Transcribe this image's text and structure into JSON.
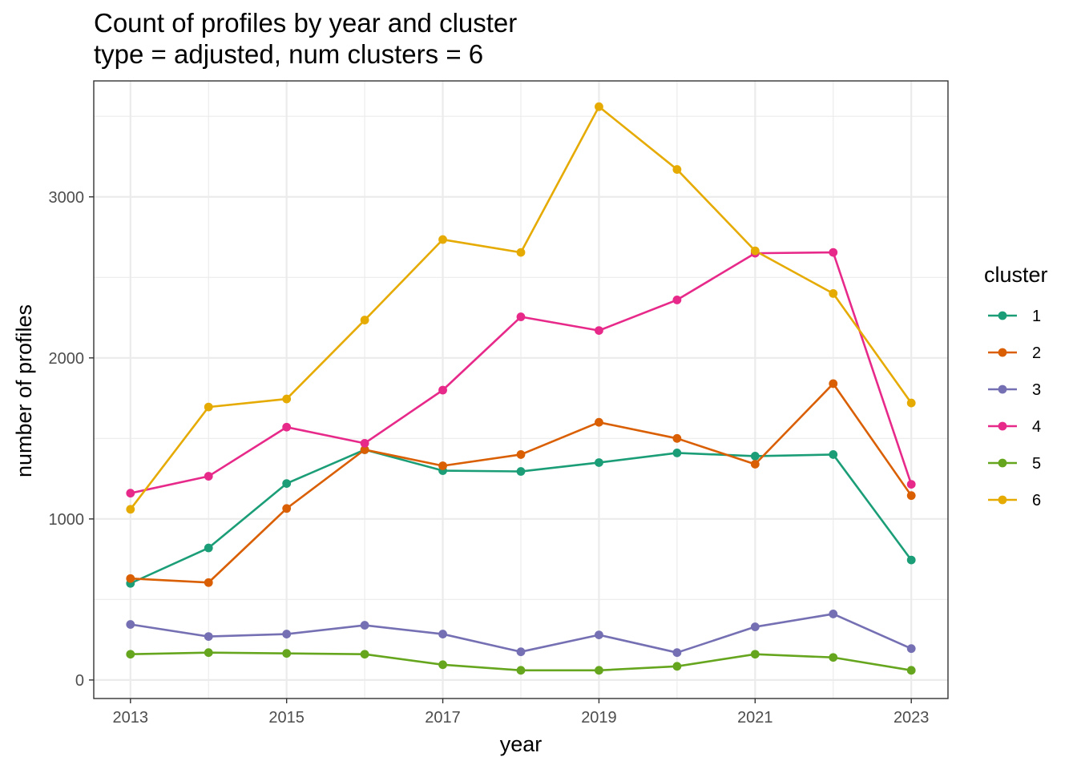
{
  "chart_data": {
    "type": "line",
    "title": "Count of profiles by year and cluster",
    "subtitle": "type = adjusted, num clusters = 6",
    "xlabel": "year",
    "ylabel": "number of profiles",
    "x": [
      2013,
      2014,
      2015,
      2016,
      2017,
      2018,
      2019,
      2020,
      2021,
      2022,
      2023
    ],
    "x_ticks": [
      2013,
      2015,
      2017,
      2019,
      2021,
      2023
    ],
    "y_ticks": [
      0,
      1000,
      2000,
      3000
    ],
    "xlim": [
      2012.53,
      2023.47
    ],
    "ylim": [
      -115,
      3720
    ],
    "grid": true,
    "legend": {
      "title": "cluster",
      "position": "right"
    },
    "series": [
      {
        "name": "1",
        "color": "#1B9E77",
        "values": [
          600,
          820,
          1220,
          1430,
          1300,
          1295,
          1350,
          1410,
          1390,
          1400,
          745
        ]
      },
      {
        "name": "2",
        "color": "#D95F02",
        "values": [
          630,
          605,
          1065,
          1430,
          1330,
          1400,
          1600,
          1500,
          1340,
          1840,
          1145
        ]
      },
      {
        "name": "3",
        "color": "#7570B3",
        "values": [
          345,
          270,
          285,
          340,
          285,
          175,
          280,
          170,
          330,
          410,
          195
        ]
      },
      {
        "name": "4",
        "color": "#E7298A",
        "values": [
          1160,
          1265,
          1570,
          1470,
          1800,
          2255,
          2170,
          2360,
          2650,
          2655,
          1215
        ]
      },
      {
        "name": "5",
        "color": "#66A61E",
        "values": [
          160,
          170,
          165,
          160,
          95,
          60,
          60,
          85,
          160,
          140,
          60
        ]
      },
      {
        "name": "6",
        "color": "#E6AB02",
        "values": [
          1060,
          1695,
          1745,
          2235,
          2735,
          2655,
          3560,
          3170,
          2665,
          2400,
          1720
        ]
      }
    ]
  }
}
